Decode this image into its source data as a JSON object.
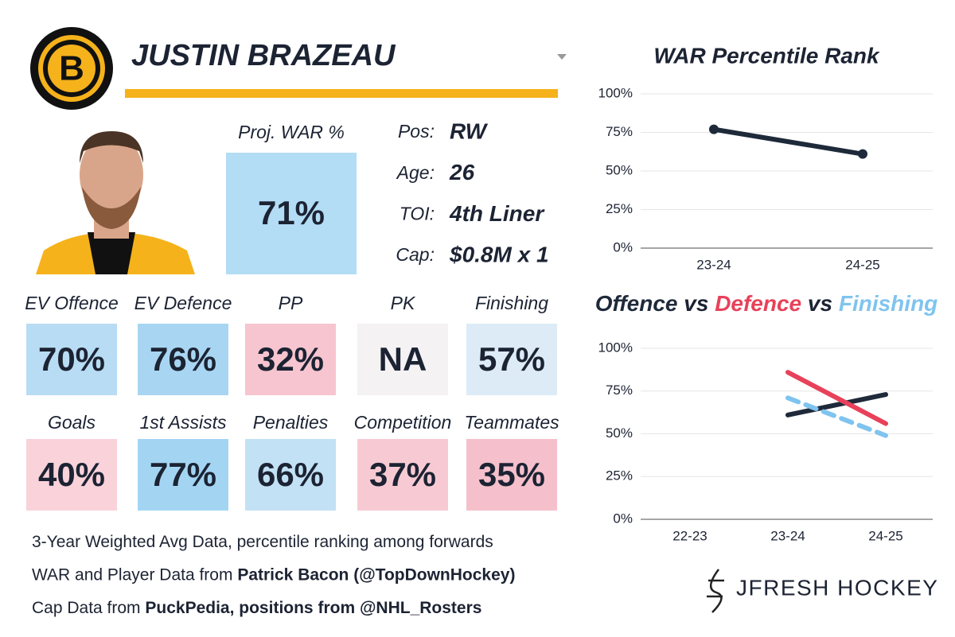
{
  "player": {
    "name": "JUSTIN BRAZEAU",
    "proj_label": "Proj. WAR %",
    "proj_value": "71%",
    "info": [
      {
        "label": "Pos:",
        "value": "RW"
      },
      {
        "label": "Age:",
        "value": "26"
      },
      {
        "label": "TOI:",
        "value": "4th Liner"
      },
      {
        "label": "Cap:",
        "value": "$0.8M x 1"
      }
    ]
  },
  "tiles": [
    {
      "label": "EV Offence",
      "value": "70%",
      "color": "#b8dcf3"
    },
    {
      "label": "EV Defence",
      "value": "76%",
      "color": "#a8d6f2"
    },
    {
      "label": "PP",
      "value": "32%",
      "color": "#f7c5cf"
    },
    {
      "label": "PK",
      "value": "NA",
      "color": "#f4f2f3"
    },
    {
      "label": "Finishing",
      "value": "57%",
      "color": "#dcebf6"
    },
    {
      "label": "Goals",
      "value": "40%",
      "color": "#f9d2da"
    },
    {
      "label": "1st Assists",
      "value": "77%",
      "color": "#a3d5f3"
    },
    {
      "label": "Penalties",
      "value": "66%",
      "color": "#c3e1f5"
    },
    {
      "label": "Competition",
      "value": "37%",
      "color": "#f7cad3"
    },
    {
      "label": "Teammates",
      "value": "35%",
      "color": "#f5c0cb"
    }
  ],
  "footer": [
    [
      "3-Year Weighted Avg Data, percentile ranking among forwards"
    ],
    [
      "WAR and Player Data from ",
      "Patrick Bacon (@TopDownHockey)"
    ],
    [
      "Cap Data from ",
      "PuckPedia, positions from @NHL_Rosters"
    ]
  ],
  "brand": "JFRESH HOCKEY",
  "chart_data": [
    {
      "type": "line",
      "title": "WAR Percentile Rank",
      "categories": [
        "23-24",
        "24-25"
      ],
      "values": [
        77,
        61
      ],
      "color": "#1e2a3a",
      "ylim": [
        0,
        100
      ],
      "yticks": [
        {
          "value": 0,
          "label": "0%"
        },
        {
          "value": 25,
          "label": "25%"
        },
        {
          "value": 50,
          "label": "50%"
        },
        {
          "value": 75,
          "label": "75%"
        },
        {
          "value": 100,
          "label": "100%"
        }
      ],
      "grid": true
    },
    {
      "type": "line",
      "title_separator": "vs",
      "categories": [
        "22-23",
        "23-24",
        "24-25"
      ],
      "series": [
        {
          "name": "Offence",
          "color": "#1e2a3a",
          "values": [
            null,
            61,
            73
          ]
        },
        {
          "name": "Defence",
          "color": "#e8415a",
          "values": [
            null,
            86,
            56
          ]
        },
        {
          "name": "Finishing",
          "color": "#7fc4ef",
          "values": [
            null,
            71,
            49
          ],
          "dashed": true
        }
      ],
      "ylim": [
        0,
        100
      ],
      "yticks": [
        {
          "value": 0,
          "label": "0%"
        },
        {
          "value": 25,
          "label": "25%"
        },
        {
          "value": 50,
          "label": "50%"
        },
        {
          "value": 75,
          "label": "75%"
        },
        {
          "value": 100,
          "label": "100%"
        }
      ],
      "grid": true
    }
  ]
}
